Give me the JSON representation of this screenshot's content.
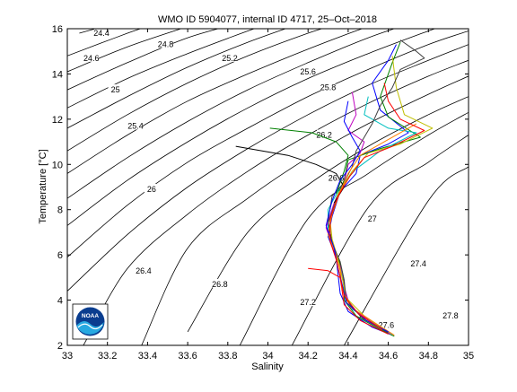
{
  "chart_data": {
    "type": "line",
    "title": "WMO ID 5904077, internal ID 4717, 25–Oct–2018",
    "xlabel": "Salinity",
    "ylabel": "Temperature [°C]",
    "xlim": [
      33,
      35
    ],
    "ylim": [
      2,
      16
    ],
    "x_ticks": [
      "33",
      "33.2",
      "33.4",
      "33.6",
      "33.8",
      "34",
      "34.2",
      "34.4",
      "34.6",
      "34.8",
      "35"
    ],
    "y_ticks": [
      "2",
      "4",
      "6",
      "8",
      "10",
      "12",
      "14",
      "16"
    ],
    "grid": false,
    "logo_text": "NOAA",
    "density_labels": [
      {
        "text": "24.4",
        "s": 33.17,
        "t": 15.8
      },
      {
        "text": "24.6",
        "s": 33.12,
        "t": 14.7
      },
      {
        "text": "24.8",
        "s": 33.49,
        "t": 15.3
      },
      {
        "text": "25",
        "s": 33.24,
        "t": 13.3
      },
      {
        "text": "25.2",
        "s": 33.81,
        "t": 14.7
      },
      {
        "text": "25.4",
        "s": 33.34,
        "t": 11.7
      },
      {
        "text": "25.6",
        "s": 34.2,
        "t": 14.1
      },
      {
        "text": "25.8",
        "s": 34.3,
        "t": 13.4
      },
      {
        "text": "26",
        "s": 33.42,
        "t": 8.9
      },
      {
        "text": "26.2",
        "s": 34.28,
        "t": 11.3
      },
      {
        "text": "26.4",
        "s": 33.38,
        "t": 5.3
      },
      {
        "text": "26.6",
        "s": 34.34,
        "t": 9.4
      },
      {
        "text": "26.8",
        "s": 33.76,
        "t": 4.7
      },
      {
        "text": "27",
        "s": 34.52,
        "t": 7.6
      },
      {
        "text": "27.2",
        "s": 34.2,
        "t": 3.9
      },
      {
        "text": "27.4",
        "s": 34.75,
        "t": 5.6
      },
      {
        "text": "27.6",
        "s": 34.59,
        "t": 2.9
      },
      {
        "text": "27.8",
        "s": 34.91,
        "t": 3.3
      }
    ],
    "density_contours": [
      {
        "sigma": 24.4,
        "points": [
          [
            33.06,
            15.8
          ],
          [
            33.28,
            16.35
          ]
        ]
      },
      {
        "sigma": 24.6,
        "points": [
          [
            33.0,
            14.8
          ],
          [
            33.3,
            15.8
          ],
          [
            33.5,
            16.4
          ]
        ]
      },
      {
        "sigma": 24.8,
        "points": [
          [
            33.0,
            14.1
          ],
          [
            33.3,
            15.2
          ],
          [
            33.6,
            16.1
          ],
          [
            33.68,
            16.35
          ]
        ]
      },
      {
        "sigma": 25.0,
        "points": [
          [
            33.0,
            13.3
          ],
          [
            33.3,
            14.5
          ],
          [
            33.6,
            15.6
          ],
          [
            33.9,
            16.35
          ]
        ]
      },
      {
        "sigma": 25.2,
        "points": [
          [
            33.0,
            12.5
          ],
          [
            33.3,
            13.8
          ],
          [
            33.6,
            14.9
          ],
          [
            33.9,
            15.9
          ],
          [
            34.05,
            16.35
          ]
        ]
      },
      {
        "sigma": 25.4,
        "points": [
          [
            33.0,
            11.6
          ],
          [
            33.3,
            13.0
          ],
          [
            33.6,
            14.3
          ],
          [
            33.9,
            15.4
          ],
          [
            34.2,
            16.35
          ]
        ]
      },
      {
        "sigma": 25.6,
        "points": [
          [
            33.0,
            10.6
          ],
          [
            33.3,
            12.2
          ],
          [
            33.6,
            13.6
          ],
          [
            33.9,
            14.8
          ],
          [
            34.2,
            15.8
          ],
          [
            34.4,
            16.35
          ]
        ]
      },
      {
        "sigma": 25.8,
        "points": [
          [
            33.0,
            9.6
          ],
          [
            33.3,
            11.3
          ],
          [
            33.6,
            12.8
          ],
          [
            33.9,
            14.0
          ],
          [
            34.2,
            15.1
          ],
          [
            34.5,
            16.1
          ],
          [
            34.6,
            16.35
          ]
        ]
      },
      {
        "sigma": 26.0,
        "points": [
          [
            33.0,
            8.5
          ],
          [
            33.3,
            10.3
          ],
          [
            33.6,
            11.9
          ],
          [
            33.9,
            13.3
          ],
          [
            34.2,
            14.5
          ],
          [
            34.5,
            15.6
          ],
          [
            34.75,
            16.35
          ]
        ]
      },
      {
        "sigma": 26.2,
        "points": [
          [
            33.0,
            7.3
          ],
          [
            33.3,
            9.3
          ],
          [
            33.6,
            11.0
          ],
          [
            33.9,
            12.5
          ],
          [
            34.2,
            13.8
          ],
          [
            34.5,
            14.9
          ],
          [
            34.8,
            15.9
          ],
          [
            34.9,
            16.2
          ]
        ]
      },
      {
        "sigma": 26.4,
        "points": [
          [
            33.0,
            5.9
          ],
          [
            33.3,
            8.2
          ],
          [
            33.6,
            10.1
          ],
          [
            33.9,
            11.6
          ],
          [
            34.2,
            13.0
          ],
          [
            34.5,
            14.2
          ],
          [
            34.8,
            15.3
          ],
          [
            35.0,
            15.9
          ]
        ]
      },
      {
        "sigma": 26.6,
        "points": [
          [
            33.0,
            4.4
          ],
          [
            33.3,
            6.9
          ],
          [
            33.6,
            9.0
          ],
          [
            33.9,
            10.7
          ],
          [
            34.2,
            12.2
          ],
          [
            34.5,
            13.5
          ],
          [
            34.8,
            14.6
          ],
          [
            35.0,
            15.3
          ]
        ]
      },
      {
        "sigma": 26.8,
        "points": [
          [
            33.08,
            2.0
          ],
          [
            33.3,
            5.4
          ],
          [
            33.6,
            7.8
          ],
          [
            33.9,
            9.7
          ],
          [
            34.2,
            11.3
          ],
          [
            34.5,
            12.7
          ],
          [
            34.8,
            13.9
          ],
          [
            35.0,
            14.6
          ]
        ]
      },
      {
        "sigma": 27.0,
        "points": [
          [
            33.37,
            2.0
          ],
          [
            33.6,
            6.3
          ],
          [
            33.9,
            8.5
          ],
          [
            34.2,
            10.3
          ],
          [
            34.5,
            11.8
          ],
          [
            34.8,
            13.1
          ],
          [
            35.0,
            13.9
          ]
        ]
      },
      {
        "sigma": 27.2,
        "points": [
          [
            33.6,
            2.6
          ],
          [
            33.9,
            7.0
          ],
          [
            34.2,
            9.1
          ],
          [
            34.5,
            10.8
          ],
          [
            34.8,
            12.2
          ],
          [
            35.0,
            13.0
          ]
        ]
      },
      {
        "sigma": 27.4,
        "points": [
          [
            33.86,
            2.0
          ],
          [
            34.2,
            7.6
          ],
          [
            34.5,
            9.6
          ],
          [
            34.8,
            11.3
          ],
          [
            35.0,
            12.3
          ]
        ]
      },
      {
        "sigma": 27.6,
        "points": [
          [
            34.12,
            2.0
          ],
          [
            34.5,
            8.1
          ],
          [
            34.8,
            10.1
          ],
          [
            35.0,
            11.3
          ]
        ]
      },
      {
        "sigma": 27.8,
        "points": [
          [
            34.38,
            2.0
          ],
          [
            34.8,
            8.4
          ],
          [
            35.0,
            9.9
          ]
        ]
      }
    ],
    "series": [
      {
        "color": "#0000ff",
        "points": [
          [
            34.64,
            15.3
          ],
          [
            34.6,
            14.6
          ],
          [
            34.52,
            13.6
          ],
          [
            34.56,
            12.4
          ],
          [
            34.7,
            11.4
          ],
          [
            34.6,
            10.9
          ],
          [
            34.46,
            10.4
          ],
          [
            34.44,
            9.6
          ],
          [
            34.36,
            8.8
          ],
          [
            34.32,
            7.7
          ],
          [
            34.3,
            6.8
          ],
          [
            34.34,
            5.9
          ],
          [
            34.35,
            5.1
          ],
          [
            34.36,
            4.3
          ],
          [
            34.4,
            3.5
          ],
          [
            34.52,
            2.8
          ],
          [
            34.62,
            2.45
          ]
        ]
      },
      {
        "color": "#008000",
        "points": [
          [
            34.66,
            15.4
          ],
          [
            34.62,
            14.5
          ],
          [
            34.56,
            13.0
          ],
          [
            34.6,
            12.1
          ],
          [
            34.76,
            11.2
          ],
          [
            34.56,
            10.7
          ],
          [
            34.4,
            10.2
          ],
          [
            34.38,
            9.3
          ],
          [
            34.34,
            8.5
          ],
          [
            34.3,
            7.4
          ],
          [
            34.32,
            6.6
          ],
          [
            34.36,
            5.6
          ],
          [
            34.38,
            4.8
          ],
          [
            34.38,
            4.0
          ],
          [
            34.44,
            3.3
          ],
          [
            34.56,
            2.7
          ],
          [
            34.63,
            2.4
          ]
        ]
      },
      {
        "color": "#ff0000",
        "points": [
          [
            34.2,
            5.4
          ],
          [
            34.3,
            5.3
          ],
          [
            34.36,
            5.0
          ],
          [
            34.37,
            4.4
          ],
          [
            34.38,
            3.8
          ],
          [
            34.46,
            3.1
          ],
          [
            34.6,
            2.5
          ]
        ]
      },
      {
        "color": "#00bfbf",
        "points": [
          [
            34.5,
            13.0
          ],
          [
            34.48,
            12.2
          ],
          [
            34.6,
            11.6
          ],
          [
            34.74,
            11.4
          ],
          [
            34.56,
            10.6
          ],
          [
            34.44,
            9.8
          ],
          [
            34.36,
            9.0
          ],
          [
            34.3,
            8.0
          ],
          [
            34.3,
            7.0
          ],
          [
            34.34,
            6.0
          ],
          [
            34.37,
            5.2
          ],
          [
            34.38,
            4.4
          ],
          [
            34.42,
            3.6
          ],
          [
            34.54,
            2.9
          ],
          [
            34.62,
            2.5
          ]
        ]
      },
      {
        "color": "#bf00bf",
        "points": [
          [
            34.42,
            13.2
          ],
          [
            34.44,
            12.2
          ],
          [
            34.4,
            11.5
          ],
          [
            34.48,
            11.0
          ],
          [
            34.46,
            10.5
          ],
          [
            34.4,
            10.0
          ],
          [
            34.38,
            9.2
          ],
          [
            34.33,
            8.3
          ],
          [
            34.29,
            7.2
          ],
          [
            34.33,
            6.2
          ],
          [
            34.36,
            5.5
          ],
          [
            34.38,
            4.6
          ],
          [
            34.41,
            3.7
          ],
          [
            34.52,
            3.0
          ],
          [
            34.61,
            2.5
          ]
        ]
      },
      {
        "color": "#bfbf00",
        "points": [
          [
            34.62,
            14.8
          ],
          [
            34.64,
            13.4
          ],
          [
            34.68,
            12.2
          ],
          [
            34.82,
            11.6
          ],
          [
            34.66,
            10.9
          ],
          [
            34.5,
            10.5
          ],
          [
            34.42,
            9.7
          ],
          [
            34.35,
            8.7
          ],
          [
            34.31,
            7.5
          ],
          [
            34.32,
            6.7
          ],
          [
            34.35,
            5.8
          ],
          [
            34.37,
            5.0
          ],
          [
            34.39,
            4.1
          ],
          [
            34.48,
            3.3
          ],
          [
            34.58,
            2.7
          ]
        ]
      },
      {
        "color": "#3f3f3f",
        "points": [
          [
            34.66,
            15.5
          ],
          [
            34.74,
            15.0
          ],
          [
            34.78,
            14.7
          ],
          [
            34.66,
            14.2
          ],
          [
            34.62,
            13.4
          ],
          [
            34.56,
            12.6
          ],
          [
            34.52,
            11.8
          ],
          [
            34.48,
            11.2
          ],
          [
            34.44,
            10.6
          ],
          [
            34.42,
            9.9
          ],
          [
            34.38,
            9.2
          ],
          [
            34.32,
            8.6
          ],
          [
            34.3,
            7.5
          ],
          [
            34.32,
            6.5
          ],
          [
            34.36,
            5.7
          ],
          [
            34.38,
            4.9
          ],
          [
            34.39,
            4.0
          ],
          [
            34.47,
            3.2
          ],
          [
            34.6,
            2.55
          ]
        ]
      },
      {
        "color": "#000000",
        "points": [
          [
            33.84,
            10.8
          ],
          [
            34.1,
            10.4
          ],
          [
            34.24,
            10.0
          ],
          [
            34.34,
            9.6
          ],
          [
            34.38,
            9.0
          ],
          [
            34.33,
            8.3
          ]
        ]
      },
      {
        "color": "#008000",
        "points": [
          [
            34.01,
            11.6
          ],
          [
            34.22,
            11.4
          ],
          [
            34.34,
            11.0
          ],
          [
            34.4,
            10.4
          ],
          [
            34.38,
            9.7
          ],
          [
            34.34,
            8.7
          ]
        ]
      },
      {
        "color": "#ff7f00",
        "points": [
          [
            34.74,
            11.8
          ],
          [
            34.58,
            11.0
          ],
          [
            34.46,
            10.4
          ],
          [
            34.4,
            9.6
          ],
          [
            34.36,
            8.8
          ],
          [
            34.32,
            7.8
          ],
          [
            34.3,
            6.9
          ],
          [
            34.34,
            6.0
          ],
          [
            34.36,
            5.3
          ],
          [
            34.37,
            4.5
          ],
          [
            34.41,
            3.7
          ],
          [
            34.55,
            2.9
          ],
          [
            34.63,
            2.45
          ]
        ]
      },
      {
        "color": "#0000ff",
        "points": [
          [
            34.4,
            12.8
          ],
          [
            34.38,
            11.9
          ],
          [
            34.42,
            11.2
          ],
          [
            34.46,
            10.6
          ],
          [
            34.42,
            10.0
          ],
          [
            34.36,
            9.3
          ],
          [
            34.32,
            8.4
          ],
          [
            34.29,
            7.3
          ],
          [
            34.33,
            6.3
          ],
          [
            34.35,
            5.4
          ],
          [
            34.37,
            4.7
          ],
          [
            34.39,
            3.9
          ],
          [
            34.49,
            3.1
          ],
          [
            34.6,
            2.6
          ]
        ]
      },
      {
        "color": "#ff0000",
        "points": [
          [
            34.58,
            13.6
          ],
          [
            34.6,
            12.8
          ],
          [
            34.66,
            12.0
          ],
          [
            34.78,
            11.5
          ],
          [
            34.62,
            10.8
          ],
          [
            34.48,
            10.3
          ],
          [
            34.41,
            9.5
          ],
          [
            34.35,
            8.6
          ],
          [
            34.31,
            7.6
          ],
          [
            34.31,
            6.6
          ],
          [
            34.34,
            5.8
          ],
          [
            34.36,
            5.0
          ],
          [
            34.38,
            4.2
          ],
          [
            34.45,
            3.4
          ],
          [
            34.57,
            2.7
          ]
        ]
      }
    ]
  }
}
